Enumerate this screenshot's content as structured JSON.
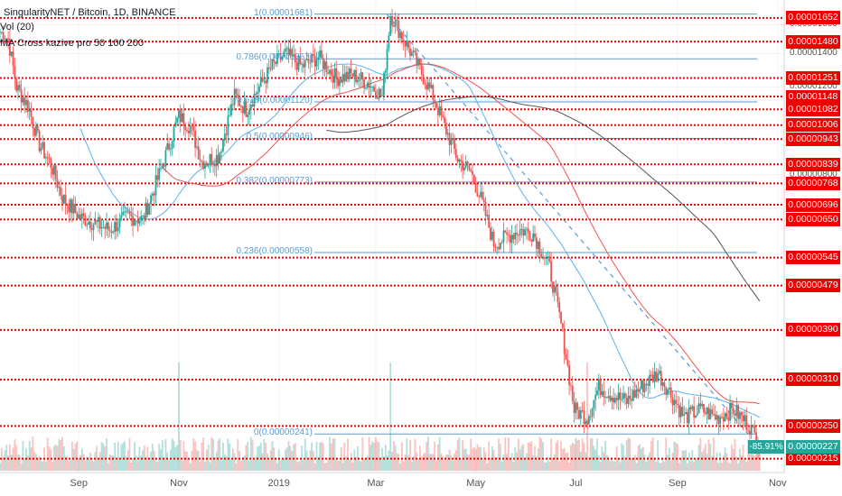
{
  "legend": {
    "title": "SingularityNET / Bitcoin, 1D, BINANCE",
    "volume": "Vol (20)",
    "ma": "MA Cross kazive pro 50 100 200"
  },
  "colors": {
    "up": "#26a69a",
    "down": "#ef5350",
    "support": "#ef0000",
    "fib": "#5b9bd5",
    "ma_fast": "#5fb0e8",
    "ma_mid": "#ef5350",
    "ma_slow": "#555555",
    "last_price": "#26a69a"
  },
  "chart_data": {
    "type": "candlestick",
    "x_range": [
      "2018-07-15",
      "2019-11-05"
    ],
    "x_ticks": [
      "Sep",
      "Nov",
      "2019",
      "Mar",
      "May",
      "Jul",
      "Sep",
      "Nov"
    ],
    "y_scale": "log",
    "y_range": [
      2.05e-06,
      1.75e-05
    ],
    "y_ticks": [
      "0.00001600",
      "0.00001400",
      "0.00001200",
      "0.00000800"
    ],
    "support_resistance_levels": [
      "0.00001652",
      "0.00001480",
      "0.00001251",
      "0.00001148",
      "0.00001082",
      "0.00001006",
      "0.00000943",
      "0.00000839",
      "0.00000768",
      "0.00000696",
      "0.00000650",
      "0.00000545",
      "0.00000479",
      "0.00000390",
      "0.00000310",
      "0.00000250",
      "0.00000215"
    ],
    "fibonacci": [
      {
        "level": "1",
        "value": "0.00001681",
        "label": "1(0.00001681)"
      },
      {
        "level": "0.786",
        "value": "0.00001367",
        "label": "0.786(0.00001367)"
      },
      {
        "level": "0.618",
        "value": "0.00001120",
        "label": "0.618(0.00001120)"
      },
      {
        "level": "0.5",
        "value": "0.00000946",
        "label": "0.5(0.00000946)"
      },
      {
        "level": "0.382",
        "value": "0.00000773",
        "label": "0.382(0.00000773)"
      },
      {
        "level": "0.236",
        "value": "0.00000558",
        "label": "0.236(0.00000558)"
      },
      {
        "level": "0",
        "value": "0.00000241",
        "label": "0(0.00000241)"
      }
    ],
    "price_path": [
      [
        "2018-07-15",
        1.55e-05
      ],
      [
        "2018-07-20",
        1.5e-05
      ],
      [
        "2018-07-25",
        1.2e-05
      ],
      [
        "2018-08-01",
        1.1e-05
      ],
      [
        "2018-08-08",
        9.2e-06
      ],
      [
        "2018-08-15",
        8.4e-06
      ],
      [
        "2018-08-22",
        7.2e-06
      ],
      [
        "2018-09-01",
        6.6e-06
      ],
      [
        "2018-09-10",
        6.4e-06
      ],
      [
        "2018-09-20",
        6.2e-06
      ],
      [
        "2018-10-01",
        6.6e-06
      ],
      [
        "2018-10-10",
        6.5e-06
      ],
      [
        "2018-10-20",
        8e-06
      ],
      [
        "2018-11-01",
        1.05e-05
      ],
      [
        "2018-11-08",
        1e-05
      ],
      [
        "2018-11-15",
        8.5e-06
      ],
      [
        "2018-11-25",
        8.7e-06
      ],
      [
        "2018-12-05",
        1.15e-05
      ],
      [
        "2018-12-12",
        1.08e-05
      ],
      [
        "2018-12-20",
        1.2e-05
      ],
      [
        "2018-12-28",
        1.32e-05
      ],
      [
        "2019-01-05",
        1.4e-05
      ],
      [
        "2019-01-15",
        1.32e-05
      ],
      [
        "2019-01-25",
        1.38e-05
      ],
      [
        "2019-02-05",
        1.25e-05
      ],
      [
        "2019-02-15",
        1.27e-05
      ],
      [
        "2019-02-25",
        1.22e-05
      ],
      [
        "2019-03-05",
        1.15e-05
      ],
      [
        "2019-03-10",
        1.68e-05
      ],
      [
        "2019-03-18",
        1.5e-05
      ],
      [
        "2019-03-28",
        1.3e-05
      ],
      [
        "2019-04-05",
        1.15e-05
      ],
      [
        "2019-04-12",
        1e-05
      ],
      [
        "2019-04-20",
        8.6e-06
      ],
      [
        "2019-04-28",
        8.1e-06
      ],
      [
        "2019-05-05",
        7e-06
      ],
      [
        "2019-05-12",
        5.8e-06
      ],
      [
        "2019-05-20",
        6e-06
      ],
      [
        "2019-05-28",
        6.2e-06
      ],
      [
        "2019-06-05",
        6.1e-06
      ],
      [
        "2019-06-15",
        5.2e-06
      ],
      [
        "2019-06-22",
        4e-06
      ],
      [
        "2019-06-30",
        2.7e-06
      ],
      [
        "2019-07-08",
        2.6e-06
      ],
      [
        "2019-07-15",
        3e-06
      ],
      [
        "2019-07-22",
        2.9e-06
      ],
      [
        "2019-08-01",
        2.8e-06
      ],
      [
        "2019-08-10",
        3e-06
      ],
      [
        "2019-08-20",
        3.2e-06
      ],
      [
        "2019-08-28",
        2.9e-06
      ],
      [
        "2019-09-05",
        2.6e-06
      ],
      [
        "2019-09-15",
        2.7e-06
      ],
      [
        "2019-09-25",
        2.6e-06
      ],
      [
        "2019-10-05",
        2.7e-06
      ],
      [
        "2019-10-15",
        2.5e-06
      ],
      [
        "2019-10-21",
        2.3e-06
      ]
    ],
    "volume_spikes": [
      "2018-11-01",
      "2019-03-10",
      "2019-07-08"
    ],
    "last_price": "0.00000227",
    "change_label": "-85.91%"
  }
}
